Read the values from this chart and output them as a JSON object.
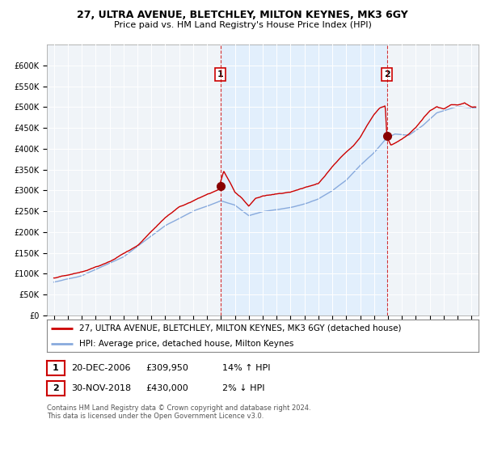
{
  "title": "27, ULTRA AVENUE, BLETCHLEY, MILTON KEYNES, MK3 6GY",
  "subtitle": "Price paid vs. HM Land Registry's House Price Index (HPI)",
  "ylabel_ticks": [
    "£0",
    "£50K",
    "£100K",
    "£150K",
    "£200K",
    "£250K",
    "£300K",
    "£350K",
    "£400K",
    "£450K",
    "£500K",
    "£550K",
    "£600K"
  ],
  "ytick_values": [
    0,
    50000,
    100000,
    150000,
    200000,
    250000,
    300000,
    350000,
    400000,
    450000,
    500000,
    550000,
    600000
  ],
  "ylim": [
    0,
    650000
  ],
  "xlim_start": 1994.5,
  "xlim_end": 2025.5,
  "sale1_date": 2006.97,
  "sale1_price": 309950,
  "sale1_label": "1",
  "sale2_date": 2018.92,
  "sale2_price": 430000,
  "sale2_label": "2",
  "legend_line1": "27, ULTRA AVENUE, BLETCHLEY, MILTON KEYNES, MK3 6GY (detached house)",
  "legend_line2": "HPI: Average price, detached house, Milton Keynes",
  "table_row1_num": "1",
  "table_row1_date": "20-DEC-2006",
  "table_row1_price": "£309,950",
  "table_row1_hpi": "14% ↑ HPI",
  "table_row2_num": "2",
  "table_row2_date": "30-NOV-2018",
  "table_row2_price": "£430,000",
  "table_row2_hpi": "2% ↓ HPI",
  "copyright": "Contains HM Land Registry data © Crown copyright and database right 2024.\nThis data is licensed under the Open Government Licence v3.0.",
  "red_color": "#cc0000",
  "blue_color": "#88aadd",
  "shade_color": "#ddeeff",
  "bg_color": "#ffffff",
  "plot_bg_color": "#f0f4f8"
}
